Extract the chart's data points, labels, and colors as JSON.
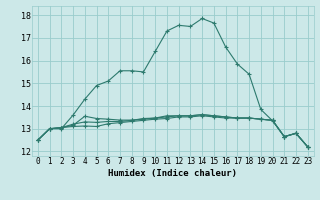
{
  "xlabel": "Humidex (Indice chaleur)",
  "background_color": "#cce8e8",
  "grid_color": "#99cccc",
  "line_color": "#2d7a6e",
  "xlim": [
    -0.5,
    23.5
  ],
  "ylim": [
    11.8,
    18.4
  ],
  "yticks": [
    12,
    13,
    14,
    15,
    16,
    17,
    18
  ],
  "xticks": [
    0,
    1,
    2,
    3,
    4,
    5,
    6,
    7,
    8,
    9,
    10,
    11,
    12,
    13,
    14,
    15,
    16,
    17,
    18,
    19,
    20,
    21,
    22,
    23
  ],
  "series": [
    [
      12.5,
      13.0,
      13.0,
      13.6,
      14.3,
      14.9,
      15.1,
      15.55,
      15.55,
      15.5,
      16.4,
      17.3,
      17.55,
      17.5,
      17.85,
      17.65,
      16.6,
      15.85,
      15.4,
      13.85,
      13.35,
      12.65,
      12.8,
      12.2
    ],
    [
      12.5,
      13.0,
      13.05,
      13.15,
      13.55,
      13.45,
      13.42,
      13.38,
      13.38,
      13.42,
      13.47,
      13.52,
      13.57,
      13.57,
      13.62,
      13.57,
      13.52,
      13.47,
      13.47,
      13.42,
      13.37,
      12.65,
      12.8,
      12.2
    ],
    [
      12.5,
      13.0,
      13.05,
      13.2,
      13.3,
      13.28,
      13.32,
      13.32,
      13.37,
      13.45,
      13.47,
      13.57,
      13.57,
      13.57,
      13.62,
      13.57,
      13.52,
      13.47,
      13.47,
      13.42,
      13.37,
      12.65,
      12.8,
      12.2
    ],
    [
      12.5,
      13.0,
      13.05,
      13.1,
      13.12,
      13.1,
      13.22,
      13.27,
      13.32,
      13.37,
      13.42,
      13.45,
      13.52,
      13.52,
      13.57,
      13.52,
      13.47,
      13.47,
      13.47,
      13.42,
      13.37,
      12.65,
      12.8,
      12.2
    ]
  ]
}
